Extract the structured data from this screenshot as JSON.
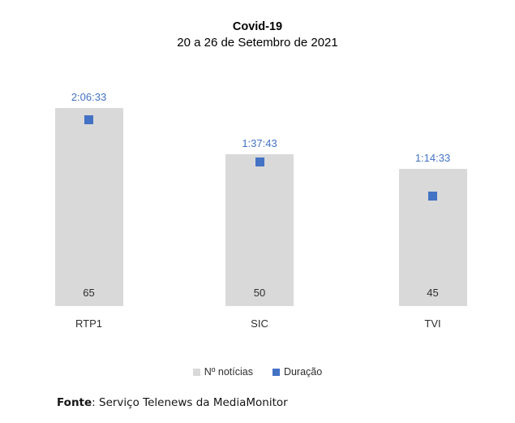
{
  "chart_data": {
    "type": "bar",
    "title": "Covid-19",
    "subtitle": "20 a 26 de Setembro de 2021",
    "categories": [
      "RTP1",
      "SIC",
      "TVI"
    ],
    "series": [
      {
        "name": "Nº notícias",
        "type": "bar",
        "color": "#d9d9d9",
        "values": [
          65,
          50,
          45
        ]
      },
      {
        "name": "Duração",
        "type": "scatter",
        "color": "#4472c4",
        "labels": [
          "2:06:33",
          "1:37:43",
          "1:14:33"
        ],
        "values_minutes": [
          126.55,
          97.72,
          74.55
        ]
      }
    ],
    "ylim_primary": [
      0,
      65
    ],
    "grid": false,
    "legend_position": "bottom"
  },
  "footer": {
    "label": "Fonte",
    "text": ": Serviço Telenews da MediaMonitor"
  }
}
